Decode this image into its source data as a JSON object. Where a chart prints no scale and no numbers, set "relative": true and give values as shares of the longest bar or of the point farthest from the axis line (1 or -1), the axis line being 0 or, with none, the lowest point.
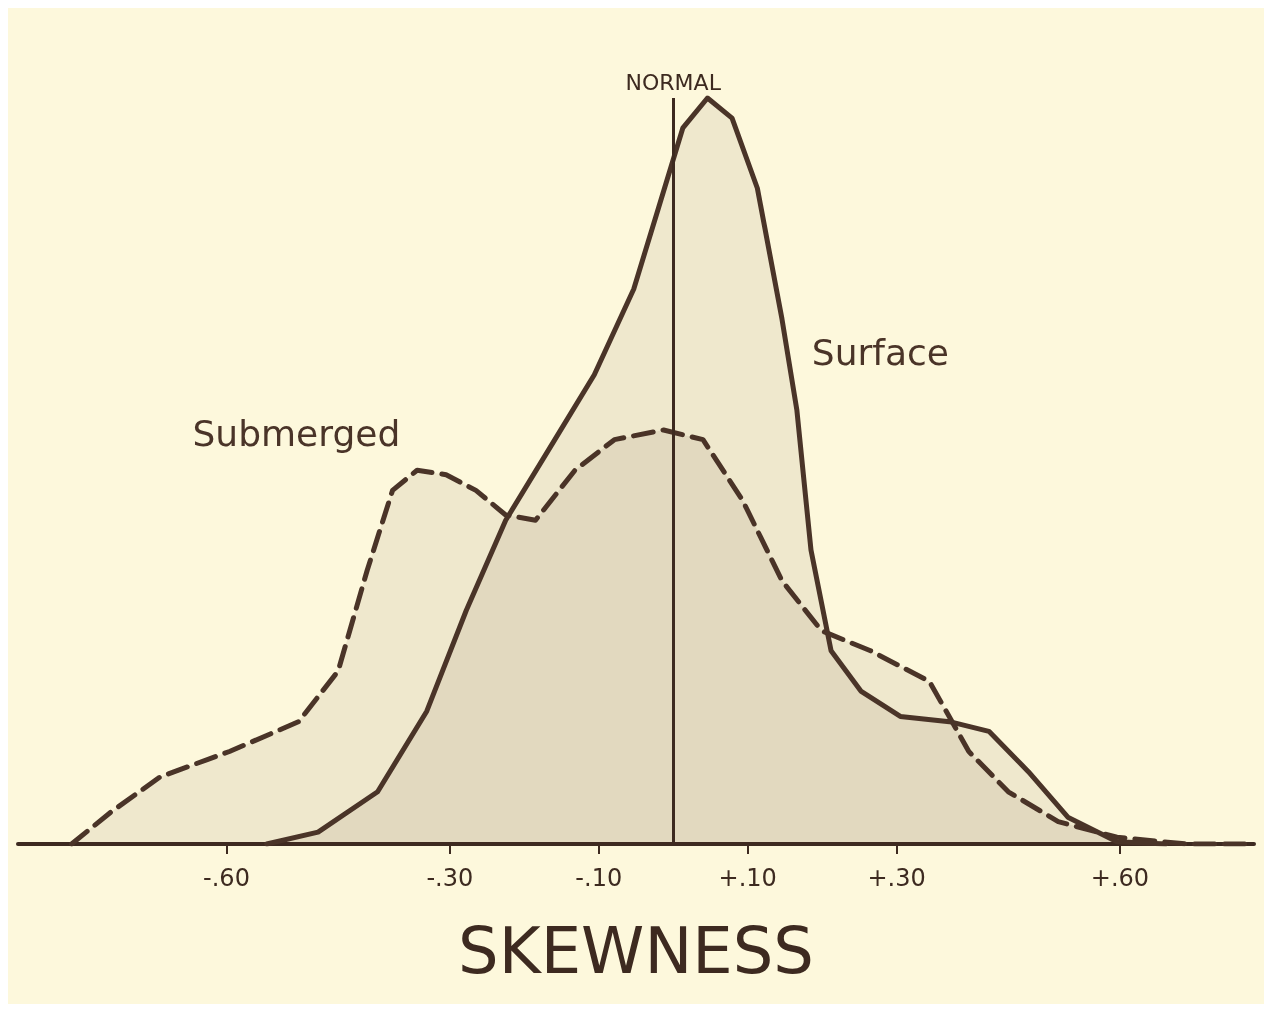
{
  "chart_data": {
    "type": "area",
    "relative": true,
    "xlabel": "SKEWNESS",
    "xlim": [
      -0.88,
      0.78
    ],
    "xticks": [
      {
        "value": -0.6,
        "label": "-.60"
      },
      {
        "value": -0.3,
        "label": "-.30"
      },
      {
        "value": -0.1,
        "label": "-.10"
      },
      {
        "value": 0.1,
        "label": "+.10"
      },
      {
        "value": 0.3,
        "label": "+.30"
      },
      {
        "value": 0.6,
        "label": "+.60"
      }
    ],
    "grid": false,
    "legend": false,
    "marker": "none",
    "ref_lines": [
      {
        "axis": "x",
        "value": 0,
        "label": "NORMAL",
        "color": "#3d2a20"
      }
    ],
    "series": [
      {
        "name": "Submerged",
        "color": "#4a3428",
        "line_style": "dashed",
        "x": [
          -0.808,
          -0.755,
          -0.689,
          -0.596,
          -0.503,
          -0.45,
          -0.411,
          -0.377,
          -0.344,
          -0.305,
          -0.265,
          -0.225,
          -0.185,
          -0.132,
          -0.079,
          -0.013,
          0.04,
          0.093,
          0.146,
          0.199,
          0.265,
          0.344,
          0.397,
          0.45,
          0.517,
          0.596,
          0.689,
          0.768
        ],
        "values": [
          0,
          0.043,
          0.09,
          0.124,
          0.164,
          0.232,
          0.367,
          0.474,
          0.501,
          0.495,
          0.474,
          0.441,
          0.434,
          0.501,
          0.542,
          0.555,
          0.542,
          0.461,
          0.353,
          0.286,
          0.259,
          0.218,
          0.124,
          0.07,
          0.03,
          0.009,
          0,
          0
        ]
      },
      {
        "name": "Surface",
        "color": "#4a3428",
        "line_style": "solid",
        "x": [
          -0.546,
          -0.477,
          -0.397,
          -0.331,
          -0.278,
          -0.225,
          -0.159,
          -0.106,
          -0.053,
          -0.02,
          0.013,
          0.046,
          0.079,
          0.113,
          0.146,
          0.166,
          0.185,
          0.212,
          0.252,
          0.305,
          0.371,
          0.424,
          0.477,
          0.53,
          0.596,
          0.662
        ],
        "values": [
          0,
          0.016,
          0.07,
          0.178,
          0.313,
          0.434,
          0.542,
          0.629,
          0.744,
          0.852,
          0.96,
          1,
          0.973,
          0.879,
          0.704,
          0.582,
          0.394,
          0.259,
          0.205,
          0.171,
          0.164,
          0.151,
          0.097,
          0.036,
          0.003,
          0
        ]
      }
    ]
  }
}
